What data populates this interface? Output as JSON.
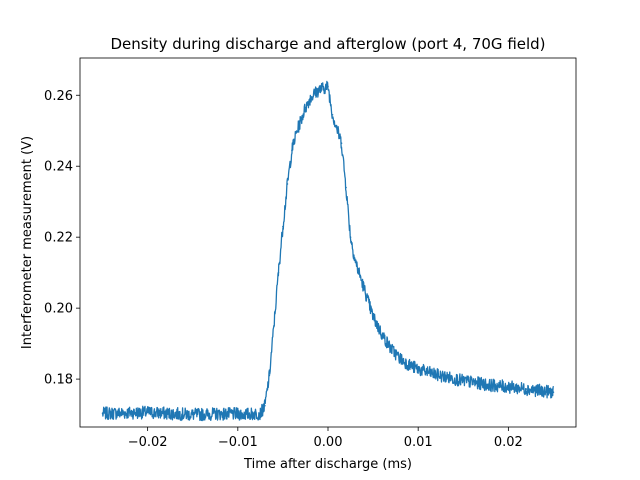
{
  "chart_data": {
    "type": "line",
    "title": "Density during discharge and afterglow (port 4, 70G field)",
    "xlabel": "Time after discharge (ms)",
    "ylabel": "Interferometer measurement (V)",
    "xlim": [
      -0.0275,
      0.0275
    ],
    "ylim": [
      0.1665,
      0.2705
    ],
    "xticks": [
      -0.02,
      -0.01,
      0.0,
      0.01,
      0.02
    ],
    "xtick_labels": [
      "−0.02",
      "−0.01",
      "0.00",
      "0.01",
      "0.02"
    ],
    "yticks": [
      0.18,
      0.2,
      0.22,
      0.24,
      0.26
    ],
    "ytick_labels": [
      "0.18",
      "0.20",
      "0.22",
      "0.24",
      "0.26"
    ],
    "grid": false,
    "legend": "none",
    "series": [
      {
        "color": "#1f77b4",
        "noise_band": 0.0018,
        "x": [
          -0.025,
          -0.022,
          -0.02,
          -0.015,
          -0.012,
          -0.009,
          -0.0075,
          -0.007,
          -0.0065,
          -0.006,
          -0.0055,
          -0.005,
          -0.0045,
          -0.004,
          -0.0035,
          -0.003,
          -0.0025,
          -0.002,
          -0.0015,
          -0.001,
          -0.0005,
          0.0,
          0.0005,
          0.001,
          0.0015,
          0.002,
          0.0025,
          0.003,
          0.004,
          0.005,
          0.006,
          0.007,
          0.008,
          0.009,
          0.01,
          0.012,
          0.015,
          0.018,
          0.02,
          0.022,
          0.025
        ],
        "y": [
          0.1703,
          0.1705,
          0.1706,
          0.17,
          0.1702,
          0.1701,
          0.1703,
          0.1725,
          0.181,
          0.195,
          0.21,
          0.223,
          0.235,
          0.2445,
          0.2495,
          0.253,
          0.2565,
          0.259,
          0.2605,
          0.2615,
          0.262,
          0.2625,
          0.2545,
          0.2505,
          0.2465,
          0.234,
          0.22,
          0.2135,
          0.2055,
          0.1975,
          0.1925,
          0.1885,
          0.1858,
          0.184,
          0.1828,
          0.1812,
          0.1795,
          0.1783,
          0.1778,
          0.1772,
          0.1763
        ]
      }
    ]
  }
}
